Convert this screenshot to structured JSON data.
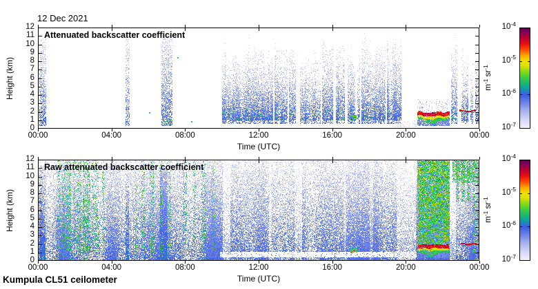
{
  "header": {
    "date": "12 Dec 2021"
  },
  "footer": {
    "instrument": "Kumpula CL51 ceilometer"
  },
  "colorbar": {
    "unit": {
      "b1": "m",
      "e1": "-1",
      "b2": "sr",
      "e2": "-1"
    },
    "ticks": [
      {
        "base": "10",
        "exp": "-4"
      },
      {
        "base": "10",
        "exp": "-5"
      },
      {
        "base": "10",
        "exp": "-6"
      },
      {
        "base": "10",
        "exp": "-7"
      }
    ],
    "scale": "log",
    "stops": [
      [
        0.0,
        [
          242,
          241,
          252
        ]
      ],
      [
        0.08,
        [
          216,
          217,
          246
        ]
      ],
      [
        0.17,
        [
          169,
          179,
          238
        ]
      ],
      [
        0.25,
        [
          111,
          134,
          232
        ]
      ],
      [
        0.333,
        [
          60,
          92,
          224
        ]
      ],
      [
        0.4,
        [
          15,
          160,
          160
        ]
      ],
      [
        0.47,
        [
          32,
          192,
          96
        ]
      ],
      [
        0.55,
        [
          112,
          216,
          32
        ]
      ],
      [
        0.62,
        [
          216,
          224,
          0
        ]
      ],
      [
        0.667,
        [
          240,
          224,
          0
        ]
      ],
      [
        0.72,
        [
          255,
          176,
          0
        ]
      ],
      [
        0.78,
        [
          255,
          80,
          0
        ]
      ],
      [
        0.84,
        [
          232,
          16,
          16
        ]
      ],
      [
        0.9,
        [
          184,
          0,
          48
        ]
      ],
      [
        0.96,
        [
          128,
          0,
          88
        ]
      ],
      [
        1.0,
        [
          88,
          0,
          78
        ]
      ]
    ]
  },
  "chart_data": [
    {
      "type": "heatmap",
      "title": "Attenuated backscatter coefficient",
      "xlabel": "Time (UTC)",
      "ylabel": "Height (km)",
      "x_ticks": [
        {
          "hour": 0,
          "label": "00:00"
        },
        {
          "hour": 4,
          "label": "04:00"
        },
        {
          "hour": 8,
          "label": "08:00"
        },
        {
          "hour": 12,
          "label": "12:00"
        },
        {
          "hour": 16,
          "label": "16:00"
        },
        {
          "hour": 20,
          "label": "20:00"
        },
        {
          "hour": 24,
          "label": "00:00"
        }
      ],
      "y_ticks": [
        "0",
        "1",
        "2",
        "3",
        "4",
        "5",
        "6",
        "7",
        "8",
        "9",
        "10",
        "11",
        "12"
      ],
      "xlim_hours": [
        0,
        24
      ],
      "ylim_km": [
        0,
        12
      ],
      "colorbar_ticks": [
        "1e-4",
        "1e-5",
        "1e-6",
        "1e-7"
      ],
      "colorbar_unit": "m^-1 sr^-1",
      "seed": 7,
      "background": "#ffffff",
      "features": {
        "masses": [
          [
            10.0,
            14.72,
            8.4,
            1.2,
            1.0
          ],
          [
            14.78,
            15.06,
            8.6,
            1.4,
            0.75
          ],
          [
            15.12,
            15.32,
            7.8,
            1.4,
            0.7
          ],
          [
            15.45,
            19.72,
            9.2,
            1.1,
            1.0
          ],
          [
            22.48,
            22.78,
            9.2,
            1.3,
            0.85
          ],
          [
            23.02,
            23.38,
            8.6,
            1.4,
            0.85
          ],
          [
            23.5,
            23.64,
            7.2,
            1.2,
            0.7
          ],
          [
            23.78,
            24.0,
            9.6,
            1.2,
            0.8
          ]
        ],
        "gaps": [
          [
            12.78,
            12.88
          ],
          [
            13.56,
            13.66
          ],
          [
            14.04,
            14.26
          ],
          [
            16.06,
            16.2
          ],
          [
            16.7,
            16.82
          ],
          [
            17.24,
            17.36
          ],
          [
            17.5,
            17.6
          ],
          [
            18.9,
            18.98
          ]
        ],
        "columns": [
          [
            0.07,
            0.42,
            10.6,
            0.6
          ],
          [
            4.76,
            4.94,
            11.2,
            0.45
          ],
          [
            6.7,
            7.26,
            11.0,
            0.65
          ]
        ],
        "green_base_column": [
          6.7,
          7.26
        ],
        "cloud_layer": [
          20.62,
          22.34,
          1.5,
          0.45,
          21.35,
          0.4
        ],
        "red_line": [
          22.92,
          23.78,
          2.05
        ],
        "green_blob": [
          16.95,
          17.3,
          0.95,
          1.6
        ],
        "specks": [
          [
            7.58,
            8.4
          ],
          [
            8.32,
            0.8
          ],
          [
            6.05,
            1.9
          ]
        ],
        "surface_strong": [
          [
            0.9,
            3.6
          ],
          [
            5.8,
            7.6
          ],
          [
            12.3,
            14.2
          ],
          [
            15.9,
            19.6
          ],
          [
            20.0,
            20.55
          ]
        ],
        "fog": [
          [
            19.4,
            20.58
          ]
        ],
        "gray_boost": [
          [
            5.2,
            6.1
          ],
          [
            10.4,
            13.6
          ],
          [
            7.0,
            8.6
          ]
        ]
      }
    },
    {
      "type": "heatmap",
      "title": "Raw attenuated backscatter coefficient",
      "xlabel": "Time (UTC)",
      "ylabel": "Height (km)",
      "x_ticks": [
        {
          "hour": 0,
          "label": "00:00"
        },
        {
          "hour": 4,
          "label": "04:00"
        },
        {
          "hour": 8,
          "label": "08:00"
        },
        {
          "hour": 12,
          "label": "12:00"
        },
        {
          "hour": 16,
          "label": "16:00"
        },
        {
          "hour": 20,
          "label": "20:00"
        },
        {
          "hour": 24,
          "label": "00:00"
        }
      ],
      "y_ticks": [
        "0",
        "1",
        "2",
        "3",
        "4",
        "5",
        "6",
        "7",
        "8",
        "9",
        "10",
        "11",
        "12"
      ],
      "xlim_hours": [
        0,
        24
      ],
      "ylim_km": [
        0,
        12
      ],
      "colorbar_ticks": [
        "1e-4",
        "1e-5",
        "1e-6",
        "1e-7"
      ],
      "colorbar_unit": "m^-1 sr^-1",
      "seed": 99,
      "background": "#ffffff",
      "features": {
        "noise_background": true,
        "white_bands": [
          [
            10.05,
            10.45,
            0.3
          ],
          [
            13.95,
            14.35,
            0.35
          ],
          [
            12.55,
            12.72,
            0.55
          ],
          [
            16.6,
            16.78,
            0.55
          ],
          [
            18.05,
            18.22,
            0.6
          ],
          [
            19.5,
            20.55,
            0.45
          ],
          [
            22.38,
            22.72,
            0.22
          ]
        ],
        "low_white_band": [
          9.9,
          20.6,
          0.35,
          1.05
        ],
        "dark_columns": [
          [
            0.07,
            0.42
          ],
          [
            4.76,
            4.94
          ],
          [
            6.64,
            7.05
          ]
        ],
        "green_streaks": [
          [
            1.05,
            1.18,
            0.5
          ],
          [
            1.3,
            1.48,
            0.7
          ],
          [
            1.55,
            1.78,
            0.8
          ],
          [
            1.92,
            2.02,
            0.5
          ],
          [
            2.1,
            2.32,
            0.75
          ],
          [
            2.45,
            2.8,
            0.85
          ],
          [
            2.92,
            3.02,
            0.5
          ],
          [
            3.12,
            3.26,
            0.55
          ],
          [
            3.5,
            3.6,
            0.4
          ],
          [
            5.28,
            5.38,
            0.45
          ],
          [
            5.62,
            5.78,
            0.55
          ],
          [
            6.08,
            6.28,
            0.65
          ],
          [
            6.6,
            6.72,
            0.6
          ],
          [
            7.1,
            7.2,
            0.5
          ],
          [
            7.88,
            8.05,
            0.55
          ],
          [
            8.45,
            8.55,
            0.45
          ],
          [
            8.9,
            9.1,
            0.5
          ],
          [
            9.45,
            9.58,
            0.35
          ],
          [
            23.62,
            23.74,
            0.8
          ],
          [
            23.85,
            23.98,
            0.85
          ]
        ],
        "high_green_streaks": [
          [
            22.72,
            22.86
          ],
          [
            23.02,
            23.18
          ],
          [
            23.32,
            23.46
          ]
        ],
        "green_block": [
          20.62,
          22.36,
          1.95
        ],
        "green_top_right": [
          22.55,
          24.0,
          9.3
        ],
        "cloud_layer": [
          20.65,
          22.32,
          1.45,
          0.45,
          21.35,
          0.45
        ],
        "red_line": [
          22.98,
          23.82,
          1.95
        ],
        "green_blob": [
          16.98,
          17.32,
          0.95,
          1.5
        ],
        "specks": [],
        "surface_strong": [
          [
            1.1,
            3.3
          ],
          [
            7.4,
            8.4
          ],
          [
            12.5,
            14.0
          ],
          [
            16.1,
            19.3
          ],
          [
            20.1,
            20.6
          ]
        ],
        "fog": [
          [
            19.55,
            20.5
          ]
        ],
        "gray_boost": [
          [
            1.4,
            2.3
          ],
          [
            4.4,
            5.6
          ],
          [
            7.2,
            8.7
          ],
          [
            10.5,
            13.5
          ]
        ]
      }
    }
  ]
}
